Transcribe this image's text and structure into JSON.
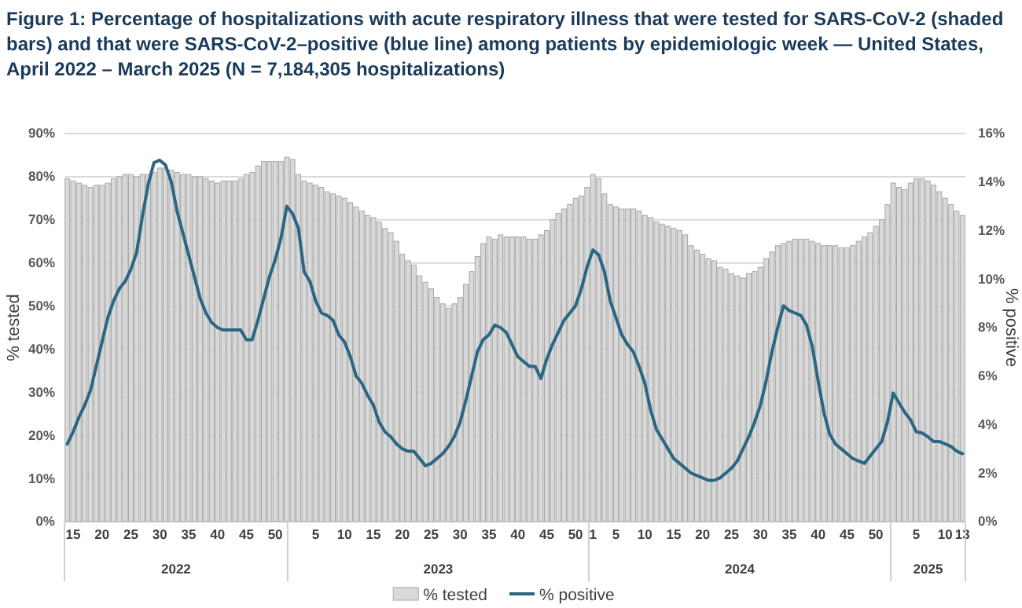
{
  "chart_data": {
    "type": "bar",
    "title": "Figure 1: Percentage of hospitalizations with acute respiratory illness that were tested for SARS-CoV-2 (shaded bars) and that were SARS-CoV-2–positive (blue line) among patients by epidemiologic week — United States, April 2022 – March 2025 (N = 7,184,305 hospitalizations)",
    "ylabel": "% tested",
    "y2label": "% positive",
    "annotations": [
      "2022",
      "2023",
      "2024",
      "2025"
    ],
    "x": [
      "2022-04-09",
      "2022-04-16",
      "2022-04-23",
      "2022-04-30",
      "2022-05-07",
      "2022-05-14",
      "2022-05-21",
      "2022-05-28",
      "2022-06-04",
      "2022-06-11",
      "2022-06-18",
      "2022-06-25",
      "2022-07-02",
      "2022-07-09",
      "2022-07-16",
      "2022-07-23",
      "2022-07-30",
      "2022-08-06",
      "2022-08-13",
      "2022-08-20",
      "2022-08-27",
      "2022-09-03",
      "2022-09-10",
      "2022-09-17",
      "2022-09-24",
      "2022-10-01",
      "2022-10-08",
      "2022-10-15",
      "2022-10-22",
      "2022-10-29",
      "2022-11-05",
      "2022-11-12",
      "2022-11-19",
      "2022-11-26",
      "2022-12-03",
      "2022-12-10",
      "2022-12-17",
      "2022-12-24",
      "2022-12-31",
      "2023-01-07",
      "2023-01-14",
      "2023-01-21",
      "2023-01-28",
      "2023-02-04",
      "2023-02-11",
      "2023-02-18",
      "2023-02-25",
      "2023-03-04",
      "2023-03-11",
      "2023-03-18",
      "2023-03-25",
      "2023-04-01",
      "2023-04-08",
      "2023-04-15",
      "2023-04-22",
      "2023-04-29",
      "2023-05-06",
      "2023-05-13",
      "2023-05-20",
      "2023-05-27",
      "2023-06-03",
      "2023-06-10",
      "2023-06-17",
      "2023-06-24",
      "2023-07-01",
      "2023-07-08",
      "2023-07-15",
      "2023-07-22",
      "2023-07-29",
      "2023-08-05",
      "2023-08-12",
      "2023-08-19",
      "2023-08-26",
      "2023-09-02",
      "2023-09-09",
      "2023-09-16",
      "2023-09-23",
      "2023-09-30",
      "2023-10-07",
      "2023-10-14",
      "2023-10-21",
      "2023-10-28",
      "2023-11-04",
      "2023-11-11",
      "2023-11-18",
      "2023-11-25",
      "2023-12-02",
      "2023-12-09",
      "2023-12-16",
      "2023-12-23",
      "2023-12-30",
      "2024-01-06",
      "2024-01-13",
      "2024-01-20",
      "2024-01-27",
      "2024-02-03",
      "2024-02-10",
      "2024-02-17",
      "2024-02-24",
      "2024-03-02",
      "2024-03-09",
      "2024-03-16",
      "2024-03-23",
      "2024-03-30",
      "2024-04-06",
      "2024-04-13",
      "2024-04-20",
      "2024-04-27",
      "2024-05-04",
      "2024-05-11",
      "2024-05-18",
      "2024-05-25",
      "2024-06-01",
      "2024-06-08",
      "2024-06-15",
      "2024-06-22",
      "2024-06-29",
      "2024-07-06",
      "2024-07-13",
      "2024-07-20",
      "2024-07-27",
      "2024-08-03",
      "2024-08-10",
      "2024-08-17",
      "2024-08-24",
      "2024-08-31",
      "2024-09-07",
      "2024-09-14",
      "2024-09-21",
      "2024-09-28",
      "2024-10-05",
      "2024-10-12",
      "2024-10-19",
      "2024-10-26",
      "2024-11-02",
      "2024-11-09",
      "2024-11-16",
      "2024-11-23",
      "2024-11-30",
      "2024-12-07",
      "2024-12-14",
      "2024-12-21",
      "2024-12-28",
      "2025-01-04",
      "2025-01-11",
      "2025-01-18",
      "2025-01-25",
      "2025-02-01",
      "2025-02-08",
      "2025-02-15",
      "2025-02-22",
      "2025-03-01",
      "2025-03-08",
      "2025-03-15",
      "2025-03-22",
      "2025-03-29"
    ],
    "xlim": [
      "2022-04-05T12:00",
      "2025-04-01T12:00"
    ],
    "xticks": [
      {
        "value": "2022-04-16",
        "label": "15"
      },
      {
        "value": "2022-05-21",
        "label": "20"
      },
      {
        "value": "2022-06-25",
        "label": "25"
      },
      {
        "value": "2022-07-30",
        "label": "30"
      },
      {
        "value": "2022-09-03",
        "label": "35"
      },
      {
        "value": "2022-10-08",
        "label": "40"
      },
      {
        "value": "2022-11-12",
        "label": "45"
      },
      {
        "value": "2022-12-17",
        "label": "50"
      },
      {
        "value": "2023-02-04",
        "label": "5"
      },
      {
        "value": "2023-03-11",
        "label": "10"
      },
      {
        "value": "2023-04-15",
        "label": "15"
      },
      {
        "value": "2023-05-20",
        "label": "20"
      },
      {
        "value": "2023-06-24",
        "label": "25"
      },
      {
        "value": "2023-07-29",
        "label": "30"
      },
      {
        "value": "2023-09-02",
        "label": "35"
      },
      {
        "value": "2023-10-07",
        "label": "40"
      },
      {
        "value": "2023-11-11",
        "label": "45"
      },
      {
        "value": "2023-12-16",
        "label": "50"
      },
      {
        "value": "2024-01-06",
        "label": "1"
      },
      {
        "value": "2024-02-03",
        "label": "5"
      },
      {
        "value": "2024-03-09",
        "label": "10"
      },
      {
        "value": "2024-04-13",
        "label": "15"
      },
      {
        "value": "2024-05-18",
        "label": "20"
      },
      {
        "value": "2024-06-22",
        "label": "25"
      },
      {
        "value": "2024-07-27",
        "label": "30"
      },
      {
        "value": "2024-08-31",
        "label": "35"
      },
      {
        "value": "2024-10-05",
        "label": "40"
      },
      {
        "value": "2024-11-09",
        "label": "45"
      },
      {
        "value": "2024-12-14",
        "label": "50"
      },
      {
        "value": "2025-02-01",
        "label": "5"
      },
      {
        "value": "2025-03-08",
        "label": "10"
      },
      {
        "value": "2025-03-29",
        "label": "13"
      }
    ],
    "ylim": [
      0,
      90
    ],
    "yticks": [
      {
        "value": 0,
        "label": "0%"
      },
      {
        "value": 10,
        "label": "10%"
      },
      {
        "value": 20,
        "label": "20%"
      },
      {
        "value": 30,
        "label": "30%"
      },
      {
        "value": 40,
        "label": "40%"
      },
      {
        "value": 50,
        "label": "50%"
      },
      {
        "value": 60,
        "label": "60%"
      },
      {
        "value": 70,
        "label": "70%"
      },
      {
        "value": 80,
        "label": "80%"
      },
      {
        "value": 90,
        "label": "90%"
      }
    ],
    "y2lim": [
      0,
      16
    ],
    "y2ticks": [
      {
        "value": 0,
        "label": "0%"
      },
      {
        "value": 2,
        "label": "2%"
      },
      {
        "value": 4,
        "label": "4%"
      },
      {
        "value": 6,
        "label": "6%"
      },
      {
        "value": 8,
        "label": "8%"
      },
      {
        "value": 10,
        "label": "10%"
      },
      {
        "value": 12,
        "label": "12%"
      },
      {
        "value": 14,
        "label": "14%"
      },
      {
        "value": 16,
        "label": "16%"
      }
    ],
    "grid": "y",
    "legend": "bottom",
    "series": [
      {
        "name": "% tested",
        "color": "#d9d9d9",
        "values": [
          79.5,
          79,
          78.5,
          78,
          77.5,
          78,
          78,
          78.5,
          79.5,
          80,
          80.5,
          80.5,
          80,
          80.5,
          80.5,
          81,
          82,
          82,
          81.5,
          81,
          80.5,
          80.5,
          80,
          80,
          79.5,
          79,
          78.5,
          79,
          79,
          79,
          79.5,
          80.5,
          81,
          82.5,
          83.5,
          83.5,
          83.5,
          83.5,
          84.5,
          84,
          80.5,
          79,
          78.5,
          78,
          77.5,
          76.5,
          76,
          75.5,
          75,
          74,
          73,
          72,
          71,
          70.5,
          69.5,
          68,
          67,
          65,
          62,
          60.5,
          59.5,
          57,
          55.5,
          54,
          52,
          50.5,
          49.5,
          50.5,
          52,
          55,
          58,
          61.5,
          64.5,
          66,
          65.5,
          66.5,
          66,
          66,
          66,
          66,
          65.5,
          65.5,
          66.5,
          67.5,
          70,
          71.5,
          72.5,
          73.5,
          75,
          75.5,
          77.5,
          80.5,
          79.5,
          76,
          73.5,
          73,
          72.5,
          72.5,
          72.5,
          72,
          71,
          70.5,
          69.5,
          69,
          68.5,
          68,
          67.5,
          66.5,
          64,
          63,
          62,
          61,
          60.5,
          59,
          58.5,
          57.5,
          57,
          56.5,
          57.5,
          58,
          59,
          61,
          62.5,
          64,
          64.5,
          65,
          65.5,
          65.5,
          65.5,
          65,
          64.5,
          64,
          64,
          64,
          63.5,
          63.5,
          64,
          65,
          66,
          67,
          68.5,
          70,
          73.5,
          78.5,
          77.5,
          77,
          78.5,
          79.5,
          79.5,
          79,
          78,
          76.5,
          75,
          73.5,
          72,
          71
        ]
      },
      {
        "name": "% positive",
        "type": "line",
        "axis": "y2",
        "color": "#2b6683",
        "values": [
          3.2,
          3.7,
          4.3,
          4.8,
          5.4,
          6.4,
          7.4,
          8.4,
          9.1,
          9.6,
          9.9,
          10.4,
          11.1,
          12.6,
          13.9,
          14.8,
          14.9,
          14.7,
          14.0,
          12.8,
          11.9,
          11.0,
          10.1,
          9.2,
          8.6,
          8.2,
          8.0,
          7.9,
          7.9,
          7.9,
          7.9,
          7.5,
          7.5,
          8.3,
          9.2,
          10.1,
          10.8,
          11.7,
          13.0,
          12.7,
          12.1,
          10.3,
          9.9,
          9.1,
          8.6,
          8.5,
          8.3,
          7.7,
          7.4,
          6.8,
          6.0,
          5.7,
          5.2,
          4.8,
          4.1,
          3.7,
          3.5,
          3.2,
          3.0,
          2.9,
          2.9,
          2.6,
          2.3,
          2.4,
          2.6,
          2.8,
          3.1,
          3.5,
          4.1,
          5.0,
          6.0,
          7.0,
          7.5,
          7.7,
          8.1,
          8.0,
          7.8,
          7.3,
          6.8,
          6.6,
          6.4,
          6.4,
          5.9,
          6.7,
          7.3,
          7.8,
          8.3,
          8.6,
          8.9,
          9.6,
          10.5,
          11.2,
          11.0,
          10.3,
          9.1,
          8.4,
          7.7,
          7.3,
          7.0,
          6.4,
          5.7,
          4.6,
          3.8,
          3.4,
          3.0,
          2.6,
          2.4,
          2.2,
          2.0,
          1.9,
          1.8,
          1.7,
          1.7,
          1.8,
          2.0,
          2.2,
          2.5,
          3.0,
          3.5,
          4.1,
          4.8,
          5.8,
          7.0,
          8.0,
          8.9,
          8.7,
          8.6,
          8.5,
          8.1,
          7.2,
          5.8,
          4.5,
          3.6,
          3.2,
          3.0,
          2.8,
          2.6,
          2.5,
          2.4,
          2.7,
          3.0,
          3.3,
          4.1,
          5.3,
          4.9,
          4.5,
          4.2,
          3.7,
          3.65,
          3.5,
          3.3,
          3.3,
          3.2,
          3.1,
          2.9,
          2.8
        ]
      }
    ]
  }
}
